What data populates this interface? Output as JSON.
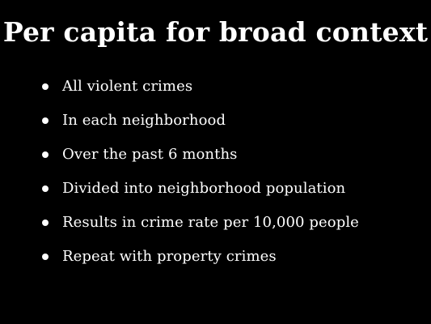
{
  "slide": {
    "title": "Per capita for broad context",
    "bullets": [
      "All violent crimes",
      "In each neighborhood",
      "Over the past 6 months",
      "Divided into neighborhood population",
      "Results in crime rate per 10,000 people",
      "Repeat with property crimes"
    ]
  },
  "colors": {
    "background": "#000000",
    "text": "#ffffff"
  }
}
